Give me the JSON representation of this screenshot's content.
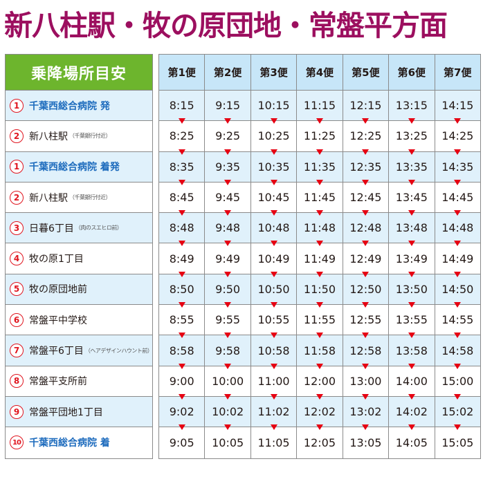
{
  "title": "新八柱駅・牧の原団地・常盤平方面",
  "stops_header": "乗降場所目安",
  "trips": [
    "第1便",
    "第2便",
    "第3便",
    "第4便",
    "第5便",
    "第6便",
    "第7便"
  ],
  "colors": {
    "title": "#9c0f5f",
    "header_green": "#6db52d",
    "header_blue": "#c7e6f8",
    "row_alt": "#e0f1fb",
    "hospital_text": "#1d6bbd",
    "number_circle": "#e0141e",
    "arrow": "#e60012"
  },
  "arrow_icon": "down-triangle-icon",
  "stops": [
    {
      "num": "1",
      "name": "千葉西総合病院 発",
      "note": "",
      "hospital": true,
      "alt": true,
      "times": [
        "8:15",
        "9:15",
        "10:15",
        "11:15",
        "12:15",
        "13:15",
        "14:15"
      ]
    },
    {
      "num": "2",
      "name": "新八柱駅",
      "note": "（千葉銀行付近）",
      "hospital": false,
      "alt": false,
      "times": [
        "8:25",
        "9:25",
        "10:25",
        "11:25",
        "12:25",
        "13:25",
        "14:25"
      ]
    },
    {
      "num": "1",
      "name": "千葉西総合病院 着発",
      "note": "",
      "hospital": true,
      "alt": true,
      "times": [
        "8:35",
        "9:35",
        "10:35",
        "11:35",
        "12:35",
        "13:35",
        "14:35"
      ]
    },
    {
      "num": "2",
      "name": "新八柱駅",
      "note": "（千葉銀行付近）",
      "hospital": false,
      "alt": false,
      "times": [
        "8:45",
        "9:45",
        "10:45",
        "11:45",
        "12:45",
        "13:45",
        "14:45"
      ]
    },
    {
      "num": "3",
      "name": "日暮6丁目",
      "note": "（肉のスエヒロ前）",
      "hospital": false,
      "alt": true,
      "times": [
        "8:48",
        "9:48",
        "10:48",
        "11:48",
        "12:48",
        "13:48",
        "14:48"
      ]
    },
    {
      "num": "4",
      "name": "牧の原1丁目",
      "note": "",
      "hospital": false,
      "alt": false,
      "times": [
        "8:49",
        "9:49",
        "10:49",
        "11:49",
        "12:49",
        "13:49",
        "14:49"
      ]
    },
    {
      "num": "5",
      "name": "牧の原団地前",
      "note": "",
      "hospital": false,
      "alt": true,
      "times": [
        "8:50",
        "9:50",
        "10:50",
        "11:50",
        "12:50",
        "13:50",
        "14:50"
      ]
    },
    {
      "num": "6",
      "name": "常盤平中学校",
      "note": "",
      "hospital": false,
      "alt": false,
      "times": [
        "8:55",
        "9:55",
        "10:55",
        "11:55",
        "12:55",
        "13:55",
        "14:55"
      ]
    },
    {
      "num": "7",
      "name": "常盤平6丁目",
      "note": "（ヘアデザインハウント前）",
      "hospital": false,
      "alt": true,
      "times": [
        "8:58",
        "9:58",
        "10:58",
        "11:58",
        "12:58",
        "13:58",
        "14:58"
      ]
    },
    {
      "num": "8",
      "name": "常盤平支所前",
      "note": "",
      "hospital": false,
      "alt": false,
      "times": [
        "9:00",
        "10:00",
        "11:00",
        "12:00",
        "13:00",
        "14:00",
        "15:00"
      ]
    },
    {
      "num": "9",
      "name": "常盤平団地1丁目",
      "note": "",
      "hospital": false,
      "alt": true,
      "times": [
        "9:02",
        "10:02",
        "11:02",
        "12:02",
        "13:02",
        "14:02",
        "15:02"
      ]
    },
    {
      "num": "10",
      "name": "千葉西総合病院 着",
      "note": "",
      "hospital": true,
      "alt": false,
      "times": [
        "9:05",
        "10:05",
        "11:05",
        "12:05",
        "13:05",
        "14:05",
        "15:05"
      ]
    }
  ]
}
